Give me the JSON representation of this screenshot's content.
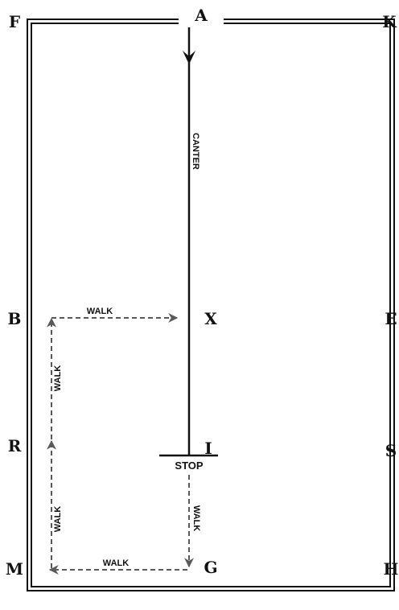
{
  "arena": {
    "letters": {
      "A": "A",
      "F": "F",
      "K": "K",
      "B": "B",
      "X": "X",
      "E": "E",
      "R": "R",
      "I": "I",
      "S": "S",
      "M": "M",
      "G": "G",
      "H": "H"
    },
    "movements": {
      "canter": "CANTER",
      "stop": "STOP",
      "walk_x_to_b": "WALK",
      "walk_b_to_r": "WALK",
      "walk_r_to_m": "WALK",
      "walk_m_to_g": "WALK",
      "walk_i_to_g": "WALK"
    },
    "colors": {
      "border": "#111111",
      "canter_line": "#111111",
      "walk_line": "#5a5a5a"
    }
  }
}
